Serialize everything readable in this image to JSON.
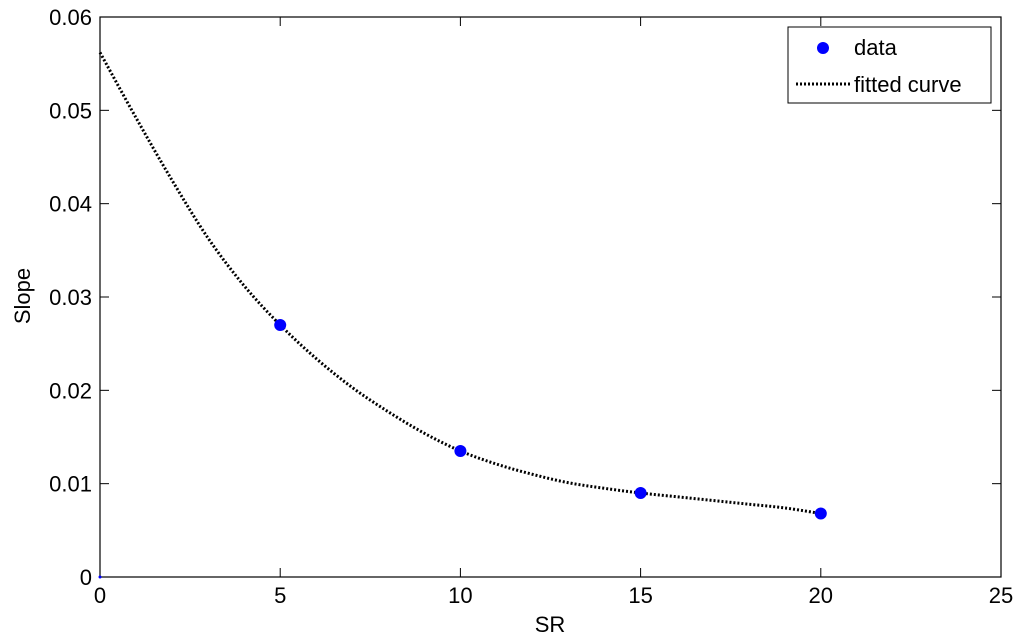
{
  "chart_data": {
    "type": "scatter",
    "xlabel": "SR",
    "ylabel": "Slope",
    "xlim": [
      0,
      25
    ],
    "ylim": [
      0,
      0.06
    ],
    "xticks": [
      0,
      5,
      10,
      15,
      20,
      25
    ],
    "xtick_labels": [
      "0",
      "5",
      "10",
      "15",
      "20",
      "25"
    ],
    "yticks": [
      0,
      0.01,
      0.02,
      0.03,
      0.04,
      0.05,
      0.06
    ],
    "ytick_labels": [
      "0",
      "0.01",
      "0.02",
      "0.03",
      "0.04",
      "0.05",
      "0.06"
    ],
    "grid": false,
    "legend_position": "top-right",
    "series": [
      {
        "name": "data",
        "style": "markers",
        "color": "#0000ff",
        "x": [
          0,
          5,
          10,
          15,
          20
        ],
        "y": [
          0,
          0.027,
          0.0135,
          0.009,
          0.0068
        ]
      },
      {
        "name": "fitted curve",
        "style": "dotted-line",
        "color": "#000000",
        "x": [
          0,
          1,
          2,
          3,
          4,
          5,
          6,
          7,
          8,
          9,
          10,
          11,
          12,
          13,
          14,
          15,
          16,
          17,
          18,
          19,
          20
        ],
        "y": [
          0.0562,
          0.0492,
          0.0425,
          0.0363,
          0.0312,
          0.027,
          0.0234,
          0.0203,
          0.0177,
          0.0154,
          0.0135,
          0.0121,
          0.011,
          0.0101,
          0.0095,
          0.009,
          0.0086,
          0.0082,
          0.0078,
          0.0074,
          0.0068
        ]
      }
    ]
  }
}
